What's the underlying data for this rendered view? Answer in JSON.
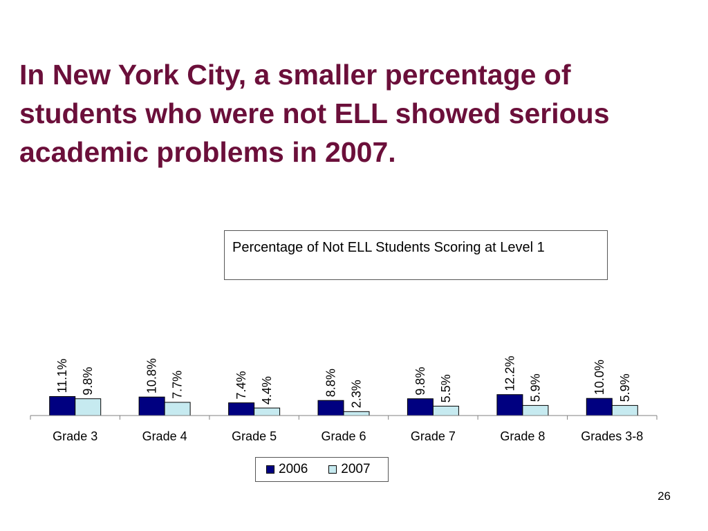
{
  "slide": {
    "title": "In New York City, a smaller percentage of students who were not ELL showed serious academic problems in 2007.",
    "page_number": "26"
  },
  "colors": {
    "title": "#6b0f3a",
    "series_2006": "#000080",
    "series_2007": "#c6eaf0"
  },
  "chart_data": {
    "type": "bar",
    "title": "Percentage of Not ELL Students Scoring at Level 1",
    "categories": [
      "Grade 3",
      "Grade 4",
      "Grade 5",
      "Grade 6",
      "Grade 7",
      "Grade 8",
      "Grades 3-8"
    ],
    "series": [
      {
        "name": "2006",
        "values": [
          11.1,
          10.8,
          7.4,
          8.8,
          9.8,
          12.2,
          10.0
        ]
      },
      {
        "name": "2007",
        "values": [
          9.8,
          7.7,
          4.4,
          2.3,
          5.5,
          5.9,
          5.9
        ]
      }
    ],
    "value_format": "percent_one_decimal",
    "legend_position": "bottom",
    "grid": false,
    "xlabel": "",
    "ylabel": ""
  }
}
